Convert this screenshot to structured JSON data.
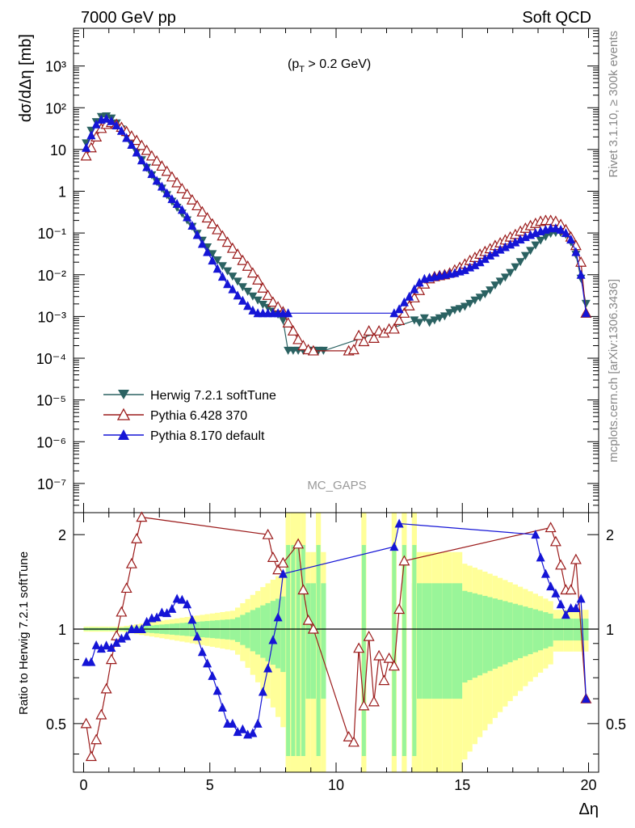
{
  "chart_data": {
    "type": "line",
    "header": {
      "left": "7000 GeV pp",
      "right": "Soft QCD"
    },
    "annotation": "(p_T > 0.2 GeV)",
    "watermark": "MC_GAPS",
    "side_text_top": "Rivet 3.1.10, ≥ 300k events",
    "side_text_bottom": "mcplots.cern.ch [arXiv:1306.3436]",
    "top_panel": {
      "ylabel": "dσ/dΔη [mb]",
      "yscale": "log",
      "ylim": [
        2e-08,
        8000
      ],
      "ytick_labels": [
        "10⁻⁷",
        "10⁻⁶",
        "10⁻⁵",
        "10⁻⁴",
        "10⁻³",
        "10⁻²",
        "10⁻¹",
        "1",
        "10",
        "10²",
        "10³"
      ]
    },
    "bottom_panel": {
      "ylabel": "Ratio to Herwig 7.2.1 softTune",
      "ylim": [
        0.35,
        2.35
      ],
      "ytick_labels": [
        "0.5",
        "1",
        "2"
      ]
    },
    "xlabel": "Δη",
    "xlim": [
      -0.4,
      20.4
    ],
    "xtick_labels": [
      "0",
      "5",
      "10",
      "15",
      "20"
    ],
    "legend": [
      "Herwig 7.2.1 softTune",
      "Pythia 6.428 370",
      "Pythia 8.170 default"
    ],
    "colors": {
      "herwig": "#2b6262",
      "p6": "#9b1b1b",
      "p8": "#1515d6",
      "band_inner": "#99f599",
      "band_outer": "#ffff99"
    },
    "series": [
      {
        "name": "Herwig 7.2.1 softTune",
        "marker": "triangle-down",
        "key": "herwig",
        "x": [
          0.1,
          0.3,
          0.5,
          0.7,
          0.9,
          1.1,
          1.3,
          1.5,
          1.7,
          1.9,
          2.1,
          2.3,
          2.5,
          2.7,
          2.9,
          3.1,
          3.3,
          3.5,
          3.7,
          3.9,
          4.1,
          4.3,
          4.5,
          4.7,
          4.9,
          5.1,
          5.3,
          5.5,
          5.7,
          5.9,
          6.1,
          6.3,
          6.5,
          6.7,
          6.9,
          7.1,
          7.3,
          7.5,
          7.7,
          7.9,
          8.1,
          8.3,
          8.5,
          8.7,
          8.9,
          9.1,
          9.3,
          9.5,
          13.1,
          13.3,
          13.5,
          13.7,
          13.9,
          14.1,
          14.3,
          14.5,
          14.7,
          14.9,
          15.1,
          15.3,
          15.5,
          15.7,
          15.9,
          16.1,
          16.3,
          16.5,
          16.7,
          16.9,
          17.1,
          17.3,
          17.5,
          17.7,
          17.9,
          18.1,
          18.3,
          18.5,
          18.7,
          18.9,
          19.1,
          19.3,
          19.5,
          19.7,
          19.9
        ],
        "y": [
          14,
          28,
          45,
          60,
          62,
          55,
          42,
          30,
          20,
          13,
          8.5,
          5.5,
          3.6,
          2.4,
          1.65,
          1.15,
          0.8,
          0.56,
          0.4,
          0.29,
          0.2,
          0.14,
          0.095,
          0.065,
          0.045,
          0.031,
          0.022,
          0.016,
          0.012,
          0.009,
          0.0068,
          0.005,
          0.0039,
          0.003,
          0.0024,
          0.0019,
          0.0016,
          0.0013,
          0.0011,
          0.0008,
          0.00015,
          0.00015,
          0.00015,
          0.00015,
          0.00015,
          0.00015,
          0.00015,
          0.00015,
          0.0008,
          0.0007,
          0.0009,
          0.0007,
          0.0008,
          0.0009,
          0.001,
          0.0012,
          0.0014,
          0.0015,
          0.0017,
          0.002,
          0.0024,
          0.0028,
          0.0034,
          0.0042,
          0.0055,
          0.0068,
          0.0085,
          0.011,
          0.015,
          0.02,
          0.028,
          0.037,
          0.05,
          0.065,
          0.08,
          0.095,
          0.1,
          0.1,
          0.09,
          0.06,
          0.03,
          0.008,
          0.002
        ]
      },
      {
        "name": "Pythia 6.428 370",
        "marker": "triangle-open",
        "key": "p6",
        "x": [
          0.1,
          0.3,
          0.5,
          0.7,
          0.9,
          1.1,
          1.3,
          1.5,
          1.7,
          1.9,
          2.1,
          2.3,
          2.5,
          2.7,
          2.9,
          3.1,
          3.3,
          3.5,
          3.7,
          3.9,
          4.1,
          4.3,
          4.5,
          4.7,
          4.9,
          5.1,
          5.3,
          5.5,
          5.7,
          5.9,
          6.1,
          6.3,
          6.5,
          6.7,
          6.9,
          7.1,
          7.3,
          7.5,
          7.7,
          7.9,
          8.1,
          8.3,
          8.5,
          8.7,
          8.9,
          9.1,
          10.5,
          10.7,
          10.9,
          11.1,
          11.3,
          11.5,
          11.7,
          11.9,
          12.1,
          12.3,
          12.5,
          12.7,
          12.9,
          13.1,
          13.3,
          13.5,
          13.7,
          13.9,
          14.1,
          14.3,
          14.5,
          14.7,
          14.9,
          15.1,
          15.3,
          15.5,
          15.7,
          15.9,
          16.1,
          16.3,
          16.5,
          16.7,
          16.9,
          17.1,
          17.3,
          17.5,
          17.7,
          17.9,
          18.1,
          18.3,
          18.5,
          18.7,
          18.9,
          19.1,
          19.3,
          19.5,
          19.7,
          19.9
        ],
        "y": [
          7,
          11,
          20,
          32,
          40,
          44,
          40,
          34,
          27,
          21,
          16.5,
          12.5,
          9.5,
          7,
          5.3,
          4,
          3,
          2.2,
          1.6,
          1.15,
          0.85,
          0.62,
          0.45,
          0.32,
          0.23,
          0.165,
          0.12,
          0.085,
          0.06,
          0.043,
          0.031,
          0.022,
          0.016,
          0.011,
          0.0075,
          0.0048,
          0.0032,
          0.0022,
          0.0017,
          0.0013,
          0.0007,
          0.00045,
          0.00028,
          0.0002,
          0.00016,
          0.00015,
          0.00015,
          0.00016,
          0.00035,
          0.00025,
          0.00045,
          0.0003,
          0.00045,
          0.0004,
          0.0005,
          0.0005,
          0.0008,
          0.0012,
          0.0018,
          0.0028,
          0.0042,
          0.006,
          0.008,
          0.009,
          0.0095,
          0.01,
          0.011,
          0.013,
          0.015,
          0.018,
          0.022,
          0.026,
          0.031,
          0.036,
          0.042,
          0.05,
          0.058,
          0.068,
          0.08,
          0.092,
          0.11,
          0.13,
          0.15,
          0.17,
          0.19,
          0.2,
          0.2,
          0.19,
          0.16,
          0.12,
          0.08,
          0.05,
          0.02,
          0.0012
        ]
      },
      {
        "name": "Pythia 8.170 default",
        "marker": "triangle-up",
        "key": "p8",
        "x": [
          0.1,
          0.3,
          0.5,
          0.7,
          0.9,
          1.1,
          1.3,
          1.5,
          1.7,
          1.9,
          2.1,
          2.3,
          2.5,
          2.7,
          2.9,
          3.1,
          3.3,
          3.5,
          3.7,
          3.9,
          4.1,
          4.3,
          4.5,
          4.7,
          4.9,
          5.1,
          5.3,
          5.5,
          5.7,
          5.9,
          6.1,
          6.3,
          6.5,
          6.7,
          6.9,
          7.1,
          7.3,
          7.5,
          7.7,
          7.9,
          8.1,
          12.3,
          12.5,
          12.7,
          12.9,
          13.1,
          13.3,
          13.5,
          13.7,
          13.9,
          14.1,
          14.3,
          14.5,
          14.7,
          14.9,
          15.1,
          15.3,
          15.5,
          15.7,
          15.9,
          16.1,
          16.3,
          16.5,
          16.7,
          16.9,
          17.1,
          17.3,
          17.5,
          17.7,
          17.9,
          18.1,
          18.3,
          18.5,
          18.7,
          18.9,
          19.1,
          19.3,
          19.5,
          19.7,
          19.9
        ],
        "y": [
          11,
          22,
          40,
          52,
          55,
          48,
          38,
          28,
          19,
          13,
          8.5,
          5.5,
          3.8,
          2.6,
          1.8,
          1.3,
          0.9,
          0.65,
          0.5,
          0.36,
          0.24,
          0.15,
          0.09,
          0.055,
          0.035,
          0.022,
          0.014,
          0.009,
          0.006,
          0.0045,
          0.0032,
          0.0024,
          0.0018,
          0.0014,
          0.0012,
          0.0012,
          0.0012,
          0.0012,
          0.0012,
          0.0012,
          0.0012,
          0.0012,
          0.0015,
          0.0022,
          0.003,
          0.0045,
          0.0065,
          0.008,
          0.0085,
          0.009,
          0.0095,
          0.01,
          0.0105,
          0.011,
          0.012,
          0.013,
          0.015,
          0.017,
          0.02,
          0.024,
          0.029,
          0.034,
          0.04,
          0.046,
          0.053,
          0.06,
          0.07,
          0.08,
          0.09,
          0.1,
          0.11,
          0.12,
          0.13,
          0.13,
          0.12,
          0.1,
          0.07,
          0.035,
          0.01,
          0.0012
        ]
      }
    ]
  }
}
